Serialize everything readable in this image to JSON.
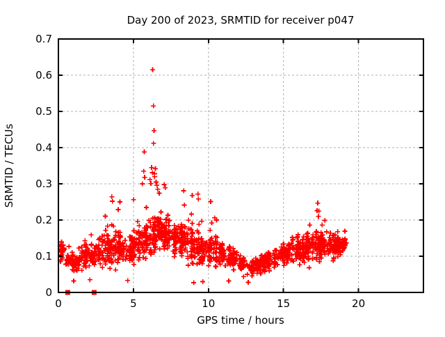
{
  "page": {
    "background": "#ffffff"
  },
  "chart_data": {
    "type": "scatter",
    "title": "Day 200 of 2023, SRMTID for receiver p047",
    "xlabel": "GPS time / hours",
    "ylabel": "SRMTID / TECUs",
    "xlim": [
      0,
      24.33
    ],
    "ylim": [
      0,
      0.7
    ],
    "x_ticks": [
      [
        0,
        "0"
      ],
      [
        5,
        "5"
      ],
      [
        10,
        "10"
      ],
      [
        15,
        "15"
      ],
      [
        20,
        "20"
      ]
    ],
    "y_ticks": [
      [
        0,
        "0"
      ],
      [
        0.1,
        "0.1"
      ],
      [
        0.2,
        "0.2"
      ],
      [
        0.3,
        "0.3"
      ],
      [
        0.4,
        "0.4"
      ],
      [
        0.5,
        "0.5"
      ],
      [
        0.6,
        "0.6"
      ],
      [
        0.7,
        "0.7"
      ]
    ],
    "grid": {
      "show": true,
      "color": "#b0b0b0",
      "dash": [
        3,
        3
      ]
    },
    "colors": {
      "marker": "#ff0000",
      "axis": "#000000",
      "background": "#ffffff",
      "text": "#000000"
    },
    "marker": {
      "shape": "plus",
      "size": 7
    },
    "data_xrange_hours": [
      0.15,
      19.2
    ],
    "band_profile": {
      "format": [
        "x_start",
        "x_end",
        "count",
        "y_low",
        "y_core",
        "y_high"
      ],
      "bins": [
        [
          0.15,
          0.5,
          28,
          0.05,
          0.11,
          0.19
        ],
        [
          0.5,
          1.0,
          34,
          0.04,
          0.09,
          0.16
        ],
        [
          1.0,
          1.5,
          34,
          0.03,
          0.08,
          0.15
        ],
        [
          1.5,
          2.0,
          38,
          0.05,
          0.1,
          0.21
        ],
        [
          2.0,
          2.5,
          38,
          0.04,
          0.1,
          0.18
        ],
        [
          2.5,
          3.0,
          40,
          0.05,
          0.11,
          0.22
        ],
        [
          3.0,
          3.5,
          44,
          0.05,
          0.12,
          0.26
        ],
        [
          3.5,
          4.0,
          44,
          0.05,
          0.12,
          0.27
        ],
        [
          4.0,
          4.5,
          44,
          0.04,
          0.12,
          0.25
        ],
        [
          4.5,
          5.0,
          40,
          0.03,
          0.12,
          0.22
        ],
        [
          5.0,
          5.5,
          44,
          0.06,
          0.13,
          0.3
        ],
        [
          5.5,
          6.0,
          46,
          0.06,
          0.14,
          0.33
        ],
        [
          6.0,
          6.5,
          50,
          0.08,
          0.16,
          0.34
        ],
        [
          6.5,
          7.0,
          50,
          0.08,
          0.17,
          0.3
        ],
        [
          7.0,
          7.5,
          50,
          0.08,
          0.16,
          0.3
        ],
        [
          7.5,
          8.0,
          46,
          0.08,
          0.15,
          0.27
        ],
        [
          8.0,
          8.5,
          46,
          0.06,
          0.14,
          0.28
        ],
        [
          8.5,
          9.0,
          44,
          0.04,
          0.13,
          0.27
        ],
        [
          9.0,
          9.5,
          40,
          0.03,
          0.12,
          0.24
        ],
        [
          9.5,
          10.0,
          40,
          0.05,
          0.12,
          0.22
        ],
        [
          10.0,
          10.5,
          40,
          0.04,
          0.12,
          0.25
        ],
        [
          10.5,
          11.0,
          40,
          0.04,
          0.11,
          0.22
        ],
        [
          11.0,
          11.5,
          38,
          0.03,
          0.1,
          0.18
        ],
        [
          11.5,
          12.0,
          34,
          0.04,
          0.09,
          0.16
        ],
        [
          12.0,
          12.5,
          34,
          0.03,
          0.08,
          0.14
        ],
        [
          12.5,
          13.0,
          34,
          0.03,
          0.07,
          0.13
        ],
        [
          13.0,
          13.5,
          34,
          0.03,
          0.07,
          0.13
        ],
        [
          13.5,
          14.0,
          36,
          0.04,
          0.08,
          0.15
        ],
        [
          14.0,
          14.5,
          40,
          0.05,
          0.09,
          0.17
        ],
        [
          14.5,
          15.0,
          40,
          0.05,
          0.1,
          0.2
        ],
        [
          15.0,
          15.5,
          42,
          0.05,
          0.11,
          0.21
        ],
        [
          15.5,
          16.0,
          44,
          0.06,
          0.12,
          0.23
        ],
        [
          16.0,
          16.5,
          44,
          0.05,
          0.12,
          0.22
        ],
        [
          16.5,
          17.0,
          44,
          0.06,
          0.13,
          0.23
        ],
        [
          17.0,
          17.5,
          46,
          0.06,
          0.13,
          0.25
        ],
        [
          17.5,
          18.0,
          48,
          0.05,
          0.13,
          0.22
        ],
        [
          18.0,
          18.5,
          48,
          0.06,
          0.13,
          0.22
        ],
        [
          18.5,
          19.0,
          44,
          0.07,
          0.13,
          0.19
        ],
        [
          19.0,
          19.2,
          16,
          0.08,
          0.13,
          0.18
        ]
      ]
    },
    "outliers": [
      [
        6.28,
        0.615
      ],
      [
        6.33,
        0.515
      ],
      [
        6.37,
        0.447
      ],
      [
        6.34,
        0.412
      ],
      [
        5.72,
        0.388
      ],
      [
        5.68,
        0.335
      ],
      [
        5.74,
        0.318
      ],
      [
        6.1,
        0.312
      ],
      [
        6.21,
        0.345
      ],
      [
        6.26,
        0.331
      ],
      [
        6.41,
        0.328
      ],
      [
        6.46,
        0.342
      ],
      [
        6.51,
        0.305
      ],
      [
        6.56,
        0.296
      ],
      [
        6.62,
        0.285
      ],
      [
        5.6,
        0.3
      ],
      [
        7.05,
        0.298
      ],
      [
        7.12,
        0.289
      ],
      [
        8.35,
        0.281
      ],
      [
        8.92,
        0.268
      ],
      [
        9.3,
        0.272
      ],
      [
        9.33,
        0.258
      ],
      [
        10.15,
        0.251
      ],
      [
        17.28,
        0.247
      ],
      [
        17.24,
        0.226
      ],
      [
        17.33,
        0.21
      ],
      [
        3.56,
        0.264
      ],
      [
        3.6,
        0.252
      ],
      [
        4.1,
        0.25
      ],
      [
        1.02,
        0.032
      ],
      [
        2.1,
        0.035
      ],
      [
        4.62,
        0.033
      ],
      [
        9.02,
        0.027
      ],
      [
        11.35,
        0.032
      ],
      [
        12.65,
        0.028
      ],
      [
        9.62,
        0.03
      ]
    ],
    "zero_markers": {
      "shape": "filled-square",
      "points": [
        [
          0.62,
          0.0
        ],
        [
          2.38,
          0.0
        ]
      ]
    },
    "seed": 200747
  }
}
